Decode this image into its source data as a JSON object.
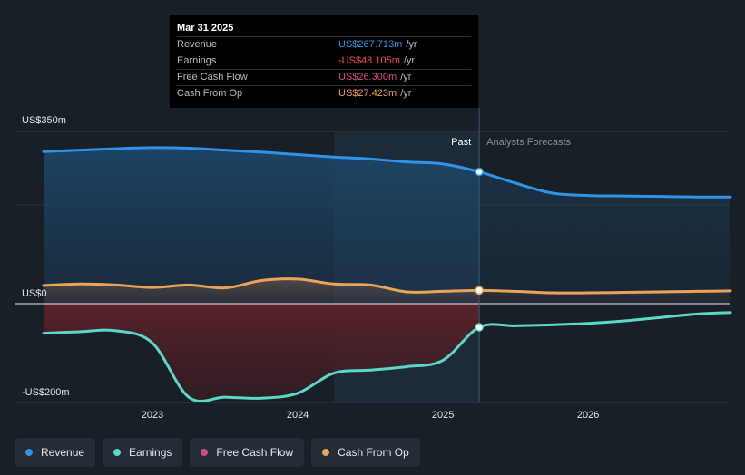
{
  "chart_data": {
    "type": "area",
    "y_axis_labels": [
      {
        "text": "US$350m",
        "value": 350
      },
      {
        "text": "US$0",
        "value": 0
      },
      {
        "text": "-US$200m",
        "value": -200
      }
    ],
    "ylim": [
      -200,
      350
    ],
    "xlim": [
      2022.25,
      2026.98
    ],
    "x_ticks": [
      {
        "label": "2023",
        "value": 2023.0
      },
      {
        "label": "2024",
        "value": 2024.0
      },
      {
        "label": "2025",
        "value": 2025.0
      },
      {
        "label": "2026",
        "value": 2026.0
      }
    ],
    "divider_x": 2025.25,
    "shade_start_x": 2024.25,
    "past_label": "Past",
    "forecast_label": "Analysts Forecasts",
    "series": [
      {
        "name": "Revenue",
        "color": "#2f94e8",
        "fill": true,
        "x": [
          2022.25,
          2022.5,
          2022.75,
          2023.0,
          2023.25,
          2023.5,
          2023.75,
          2024.0,
          2024.25,
          2024.5,
          2024.75,
          2025.0,
          2025.25,
          2025.5,
          2025.75,
          2026.0,
          2026.25,
          2026.5,
          2026.75,
          2026.98
        ],
        "values": [
          309,
          312,
          315,
          317,
          316,
          312,
          308,
          303,
          298,
          294,
          288,
          284,
          268,
          245,
          225,
          220,
          219,
          218,
          217,
          217
        ],
        "marker_index": 12
      },
      {
        "name": "Earnings",
        "color": "#5ad8c8",
        "fill": true,
        "x": [
          2022.25,
          2022.5,
          2022.75,
          2023.0,
          2023.25,
          2023.5,
          2023.75,
          2024.0,
          2024.25,
          2024.5,
          2024.75,
          2025.0,
          2025.25,
          2025.5,
          2025.75,
          2026.0,
          2026.25,
          2026.5,
          2026.75,
          2026.98
        ],
        "values": [
          -60,
          -57,
          -55,
          -80,
          -190,
          -190,
          -192,
          -182,
          -141,
          -135,
          -128,
          -115,
          -48,
          -45,
          -43,
          -40,
          -35,
          -28,
          -21,
          -18
        ],
        "marker_index": 12
      },
      {
        "name": "Free Cash Flow",
        "color": "#d14b8a",
        "fill": false,
        "x": [],
        "values": []
      },
      {
        "name": "Cash From Op",
        "color": "#e8a558",
        "fill": true,
        "x": [
          2022.25,
          2022.5,
          2022.75,
          2023.0,
          2023.25,
          2023.5,
          2023.75,
          2024.0,
          2024.25,
          2024.5,
          2024.75,
          2025.0,
          2025.25,
          2025.5,
          2025.75,
          2026.0,
          2026.25,
          2026.5,
          2026.75,
          2026.98
        ],
        "values": [
          37,
          40,
          38,
          33,
          38,
          32,
          47,
          50,
          40,
          38,
          24,
          25,
          27,
          25,
          22,
          22,
          23,
          24,
          25,
          26
        ],
        "marker_index": 12
      }
    ]
  },
  "tooltip": {
    "date": "Mar 31 2025",
    "rows": [
      {
        "label": "Revenue",
        "value": "US$267.713m",
        "unit": "/yr",
        "color": "#2f94e8"
      },
      {
        "label": "Earnings",
        "value": "-US$48.105m",
        "unit": "/yr",
        "color": "#ff4d4d"
      },
      {
        "label": "Free Cash Flow",
        "value": "US$26.300m",
        "unit": "/yr",
        "color": "#d14b8a"
      },
      {
        "label": "Cash From Op",
        "value": "US$27.423m",
        "unit": "/yr",
        "color": "#e8a558"
      }
    ]
  },
  "legend": [
    {
      "label": "Revenue",
      "color": "#2f94e8"
    },
    {
      "label": "Earnings",
      "color": "#5ad8c8"
    },
    {
      "label": "Free Cash Flow",
      "color": "#d14b8a"
    },
    {
      "label": "Cash From Op",
      "color": "#e8a558"
    }
  ]
}
